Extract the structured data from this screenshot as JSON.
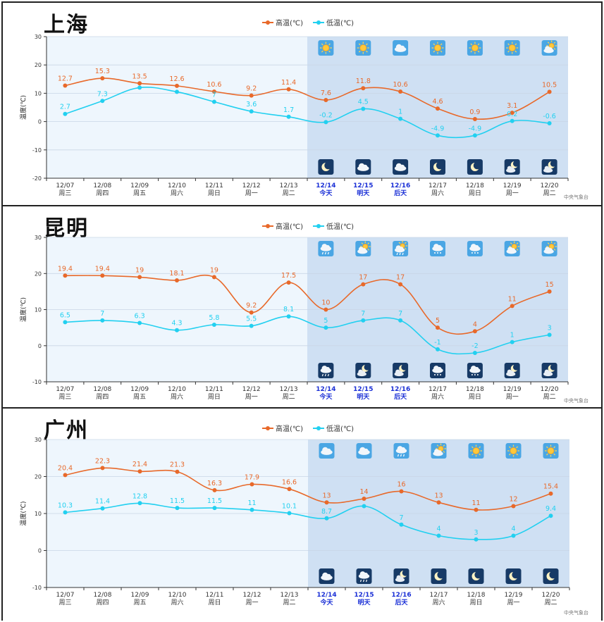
{
  "colors": {
    "high": "#e8692a",
    "low": "#22d0f0",
    "past_bg": "#eef6fd",
    "future_bg": "#cfe0f3",
    "today_label": "#1a2fd6",
    "icon_day_bg": "#4aa6e4",
    "icon_night_bg": "#173a66"
  },
  "legend": {
    "high_label": "高温(℃)",
    "low_label": "低温(℃)"
  },
  "ylabel": "温度(℃)",
  "source": "中央气象台",
  "chart_data": [
    {
      "type": "line",
      "title": "上海",
      "ylim": [
        -20,
        30
      ],
      "yticks": [
        30,
        20,
        10,
        0,
        -10,
        -20
      ],
      "categories": [
        "12/07",
        "12/08",
        "12/09",
        "12/10",
        "12/11",
        "12/12",
        "12/13",
        "12/14",
        "12/15",
        "12/16",
        "12/17",
        "12/18",
        "12/19",
        "12/20"
      ],
      "weekdays": [
        "周三",
        "周四",
        "周五",
        "周六",
        "周日",
        "周一",
        "周二",
        "今天",
        "明天",
        "后天",
        "周六",
        "周日",
        "周一",
        "周二"
      ],
      "forecast_start_index": 7,
      "series": [
        {
          "name": "高温(℃)",
          "values": [
            12.7,
            15.3,
            13.5,
            12.6,
            10.6,
            9.2,
            11.4,
            7.6,
            11.8,
            10.6,
            4.6,
            0.9,
            3.1,
            10.5
          ]
        },
        {
          "name": "低温(℃)",
          "values": [
            2.7,
            7.3,
            12,
            10.5,
            7,
            3.6,
            1.7,
            -0.2,
            4.5,
            1,
            -4.9,
            -4.9,
            0.2,
            -0.6
          ]
        }
      ],
      "low_labels": [
        "2.7",
        "7.3",
        "",
        "",
        "7",
        "3.6",
        "1.7",
        "-0.2",
        "4.5",
        "1",
        "-4.9",
        "-4.9",
        "0.2",
        "-0.6"
      ],
      "day_icons": [
        "sunny-icon",
        "sunny-icon",
        "cloudy-icon",
        "sunny-icon",
        "sunny-icon",
        "sunny-icon",
        "partly-cloudy-icon"
      ],
      "night_icons": [
        "moon-icon",
        "cloudy-icon",
        "cloudy-icon",
        "moon-icon",
        "moon-icon",
        "moon-cloud-icon",
        "moon-cloud-icon"
      ]
    },
    {
      "type": "line",
      "title": "昆明",
      "ylim": [
        -10,
        30
      ],
      "yticks": [
        30,
        20,
        10,
        0,
        -10
      ],
      "categories": [
        "12/07",
        "12/08",
        "12/09",
        "12/10",
        "12/11",
        "12/12",
        "12/13",
        "12/14",
        "12/15",
        "12/16",
        "12/17",
        "12/18",
        "12/19",
        "12/20"
      ],
      "weekdays": [
        "周三",
        "周四",
        "周五",
        "周六",
        "周日",
        "周一",
        "周二",
        "今天",
        "明天",
        "后天",
        "周六",
        "周日",
        "周一",
        "周二"
      ],
      "forecast_start_index": 7,
      "series": [
        {
          "name": "高温(℃)",
          "values": [
            19.4,
            19.4,
            19,
            18.1,
            19,
            9.2,
            17.5,
            10,
            17,
            17,
            5,
            4,
            11,
            15
          ]
        },
        {
          "name": "低温(℃)",
          "values": [
            6.5,
            7,
            6.3,
            4.3,
            5.8,
            5.5,
            8.1,
            5,
            7,
            7,
            -1,
            -2,
            1,
            3
          ]
        }
      ],
      "low_labels": [
        "6.5",
        "7",
        "6.3",
        "4.3",
        "5.8",
        "5.5",
        "8.1",
        "5",
        "7",
        "7",
        "-1",
        "-2",
        "1",
        "3"
      ],
      "day_icons": [
        "cloudy-rain-icon",
        "partly-cloudy-icon",
        "partly-cloudy-rain-icon",
        "cloudy-snow-icon",
        "cloudy-snow-icon",
        "partly-cloudy-icon",
        "partly-cloudy-icon"
      ],
      "night_icons": [
        "cloudy-rain-icon",
        "moon-cloud-icon",
        "moon-cloud-icon",
        "cloudy-snow-icon",
        "cloudy-snow-icon",
        "moon-cloud-icon",
        "moon-cloud-icon"
      ]
    },
    {
      "type": "line",
      "title": "广州",
      "ylim": [
        -10,
        30
      ],
      "yticks": [
        30,
        20,
        10,
        0,
        -10
      ],
      "categories": [
        "12/07",
        "12/08",
        "12/09",
        "12/10",
        "12/11",
        "12/12",
        "12/13",
        "12/14",
        "12/15",
        "12/16",
        "12/17",
        "12/18",
        "12/19",
        "12/20"
      ],
      "weekdays": [
        "周三",
        "周四",
        "周五",
        "周六",
        "周日",
        "周一",
        "周二",
        "今天",
        "明天",
        "后天",
        "周六",
        "周日",
        "周一",
        "周二"
      ],
      "forecast_start_index": 7,
      "series": [
        {
          "name": "高温(℃)",
          "values": [
            20.4,
            22.3,
            21.4,
            21.3,
            16.3,
            17.9,
            16.6,
            13,
            14,
            16,
            13,
            11,
            12,
            15.4
          ]
        },
        {
          "name": "低温(℃)",
          "values": [
            10.3,
            11.4,
            12.8,
            11.5,
            11.5,
            11,
            10.1,
            8.7,
            12,
            7,
            4,
            3,
            4,
            9.4
          ]
        }
      ],
      "low_labels": [
        "10.3",
        "11.4",
        "12.8",
        "11.5",
        "11.5",
        "11",
        "10.1",
        "8.7",
        "",
        "7",
        "4",
        "3",
        "4",
        "9.4"
      ],
      "day_icons": [
        "cloudy-icon",
        "cloudy-icon",
        "cloudy-rain-icon",
        "partly-cloudy-icon",
        "sunny-icon",
        "sunny-icon",
        "sunny-icon"
      ],
      "night_icons": [
        "cloudy-icon",
        "cloudy-rain-icon",
        "moon-cloud-icon",
        "moon-icon",
        "moon-icon",
        "moon-icon",
        "moon-icon"
      ]
    }
  ]
}
